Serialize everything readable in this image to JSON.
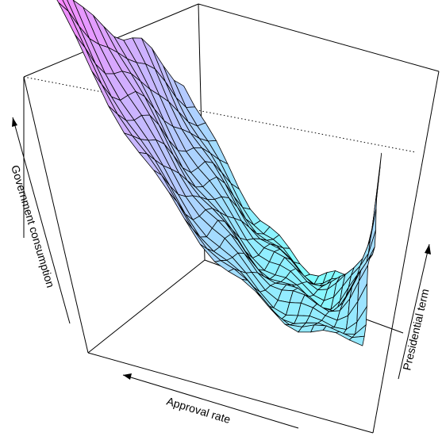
{
  "chart_data": {
    "type": "surface",
    "xlabel": "Approval rate",
    "ylabel": "Presidential term",
    "zlabel": "Government consumption",
    "axis_ticks": false,
    "box": true,
    "colors": {
      "high": "#ff80ff",
      "low": "#80ffff",
      "mesh": "#000000",
      "box": "#000000"
    },
    "grid_rows": 14,
    "grid_cols": 22,
    "surface_shape": "valley along approval rate, rising steeply at low presidential term and low approval rate"
  }
}
